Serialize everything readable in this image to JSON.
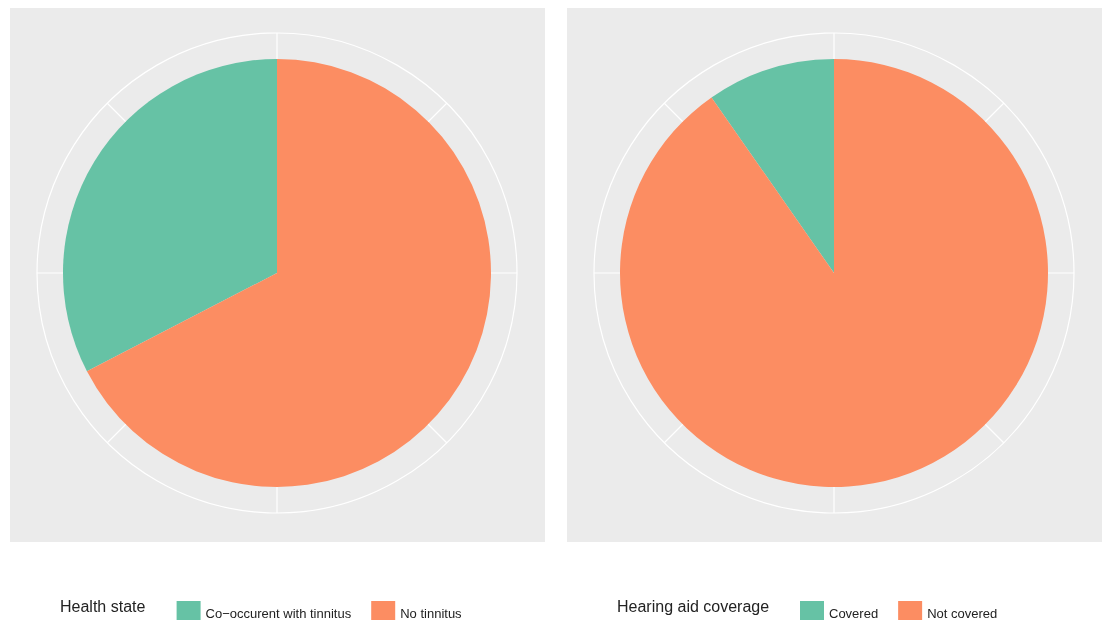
{
  "chart_data": [
    {
      "type": "pie",
      "legend_title": "Health state",
      "categories": [
        "Co−occurent with tinnitus",
        "No tinnitus"
      ],
      "values": [
        32.6,
        67.4
      ],
      "colors": [
        "#66c2a5",
        "#fc8d62"
      ],
      "legend": "bottom"
    },
    {
      "type": "pie",
      "legend_title": "Hearing aid coverage",
      "categories": [
        "Covered",
        "Not covered"
      ],
      "values": [
        9.7,
        90.3
      ],
      "colors": [
        "#66c2a5",
        "#fc8d62"
      ],
      "legend": "bottom"
    }
  ]
}
